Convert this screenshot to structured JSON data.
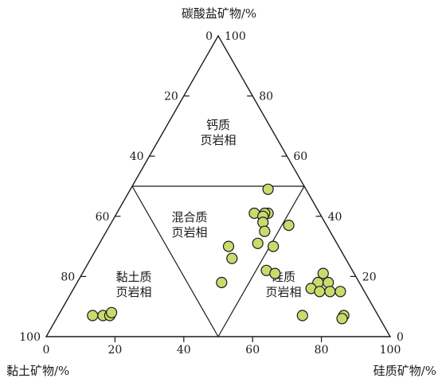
{
  "chart_data": {
    "type": "scatter",
    "subtype": "ternary",
    "axes": {
      "top": {
        "label": "碳酸盐矿物/%"
      },
      "left": {
        "label": "黏土矿物/%"
      },
      "right": {
        "label": "硅质矿物/%"
      }
    },
    "ticks": {
      "bottom": [
        "0",
        "20",
        "40",
        "60",
        "80",
        "100"
      ],
      "left": [
        "0",
        "20",
        "40",
        "60",
        "80",
        "100"
      ],
      "right": [
        "0",
        "20",
        "40",
        "60",
        "80",
        "100"
      ]
    },
    "regions": [
      {
        "label_lines": [
          "钙质",
          "页岩相"
        ]
      },
      {
        "label_lines": [
          "混合质",
          "页岩相"
        ]
      },
      {
        "label_lines": [
          "黏土质",
          "页岩相"
        ]
      },
      {
        "label_lines": [
          "硅质",
          "页岩相"
        ]
      }
    ],
    "boundaries": {
      "carbonate_threshold": 50,
      "clay_threshold": 50,
      "silica_threshold": 50
    },
    "points": [
      {
        "carbonate": 49,
        "silica": 40
      },
      {
        "carbonate": 41,
        "silica": 40
      },
      {
        "carbonate": 41,
        "silica": 44
      },
      {
        "carbonate": 41,
        "silica": 43
      },
      {
        "carbonate": 40,
        "silica": 43
      },
      {
        "carbonate": 38,
        "silica": 44
      },
      {
        "carbonate": 37,
        "silica": 52
      },
      {
        "carbonate": 35,
        "silica": 46
      },
      {
        "carbonate": 31,
        "silica": 46
      },
      {
        "carbonate": 30,
        "silica": 51
      },
      {
        "carbonate": 30,
        "silica": 38
      },
      {
        "carbonate": 26,
        "silica": 41
      },
      {
        "carbonate": 22,
        "silica": 53
      },
      {
        "carbonate": 21,
        "silica": 70
      },
      {
        "carbonate": 21,
        "silica": 56
      },
      {
        "carbonate": 18,
        "silica": 42
      },
      {
        "carbonate": 18,
        "silica": 70
      },
      {
        "carbonate": 18,
        "silica": 73
      },
      {
        "carbonate": 15,
        "silica": 75
      },
      {
        "carbonate": 16,
        "silica": 69
      },
      {
        "carbonate": 15,
        "silica": 72
      },
      {
        "carbonate": 15,
        "silica": 78
      },
      {
        "carbonate": 7,
        "silica": 10
      },
      {
        "carbonate": 7,
        "silica": 13
      },
      {
        "carbonate": 7,
        "silica": 15
      },
      {
        "carbonate": 8,
        "silica": 15
      },
      {
        "carbonate": 7,
        "silica": 71
      },
      {
        "carbonate": 7,
        "silica": 83
      },
      {
        "carbonate": 6,
        "silica": 83
      }
    ],
    "grid": false,
    "legend": "none",
    "colors": {
      "point_fill": "#c8dc6e",
      "point_stroke": "#1a1a1a",
      "line": "#1a1a1a"
    }
  }
}
